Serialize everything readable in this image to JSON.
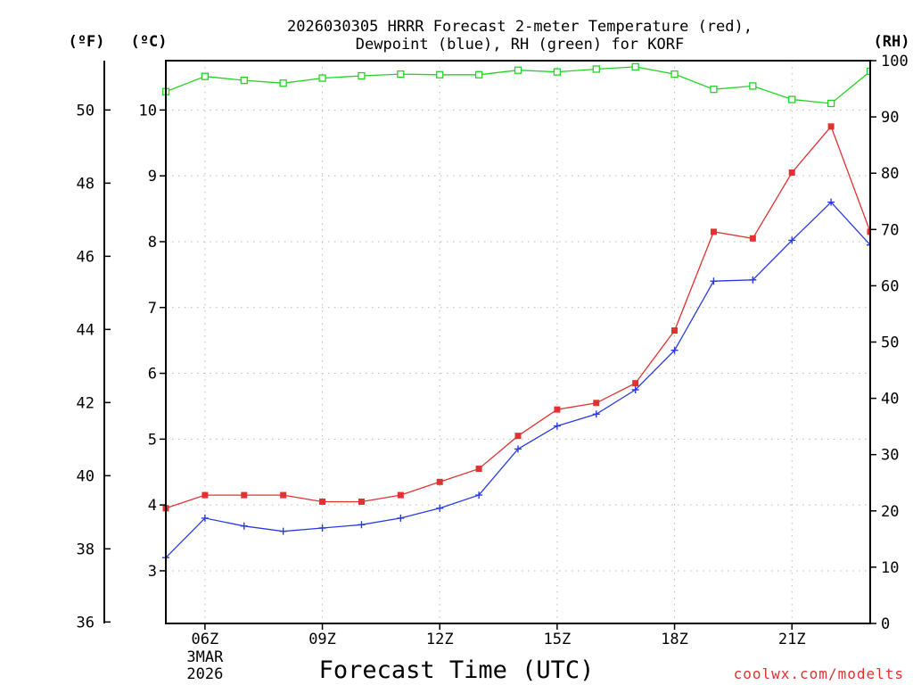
{
  "chart_data": {
    "type": "line",
    "title_line1": "2026030305 HRRR Forecast 2-meter Temperature (red),",
    "title_line2": "Dewpoint (blue), RH (green) for KORF",
    "xlabel": "Forecast Time (UTC)",
    "credit": "coolwx.com/modelts",
    "units": {
      "fahrenheit": "(ºF)",
      "celsius": "(ºC)",
      "rh": "(RH)"
    },
    "x_hours": [
      5,
      6,
      7,
      8,
      9,
      10,
      11,
      12,
      13,
      14,
      15,
      16,
      17,
      18,
      19,
      20,
      21,
      22,
      23
    ],
    "x_ticks": [
      {
        "hour": 6,
        "label": "06Z",
        "sub1": "3MAR",
        "sub2": "2026"
      },
      {
        "hour": 9,
        "label": "09Z"
      },
      {
        "hour": 12,
        "label": "12Z"
      },
      {
        "hour": 15,
        "label": "15Z"
      },
      {
        "hour": 18,
        "label": "18Z"
      },
      {
        "hour": 21,
        "label": "21Z"
      }
    ],
    "xlim": [
      5,
      23
    ],
    "celsius_axis": {
      "ylim": [
        2.2,
        10.75
      ],
      "ticks": [
        3,
        4,
        5,
        6,
        7,
        8,
        9,
        10
      ]
    },
    "fahrenheit_axis": {
      "ticks": [
        36,
        38,
        40,
        42,
        44,
        46,
        48,
        50
      ]
    },
    "rh_axis": {
      "ylim": [
        0,
        100
      ],
      "ticks": [
        0,
        10,
        20,
        30,
        40,
        50,
        60,
        70,
        80,
        90,
        100
      ]
    },
    "series": [
      {
        "name": "Temperature",
        "color": "#e03232",
        "units": "C",
        "marker": "filled-square",
        "values": [
          3.95,
          4.15,
          4.15,
          4.15,
          4.05,
          4.05,
          4.15,
          4.35,
          4.55,
          5.05,
          5.45,
          5.55,
          5.85,
          6.65,
          8.15,
          8.05,
          9.05,
          9.75,
          8.15
        ]
      },
      {
        "name": "Dewpoint",
        "color": "#2a3ce0",
        "units": "C",
        "marker": "plus",
        "values": [
          3.2,
          3.8,
          3.68,
          3.6,
          3.65,
          3.7,
          3.8,
          3.95,
          4.15,
          4.85,
          5.2,
          5.38,
          5.75,
          6.35,
          7.4,
          7.42,
          8.02,
          8.6,
          7.95
        ]
      },
      {
        "name": "RH",
        "color": "#22d322",
        "units": "%",
        "marker": "open-square",
        "values": [
          94.5,
          97.2,
          96.5,
          96.0,
          96.9,
          97.3,
          97.6,
          97.5,
          97.5,
          98.3,
          98.0,
          98.5,
          98.9,
          97.6,
          94.9,
          95.5,
          93.1,
          92.4,
          98.1
        ]
      }
    ]
  }
}
